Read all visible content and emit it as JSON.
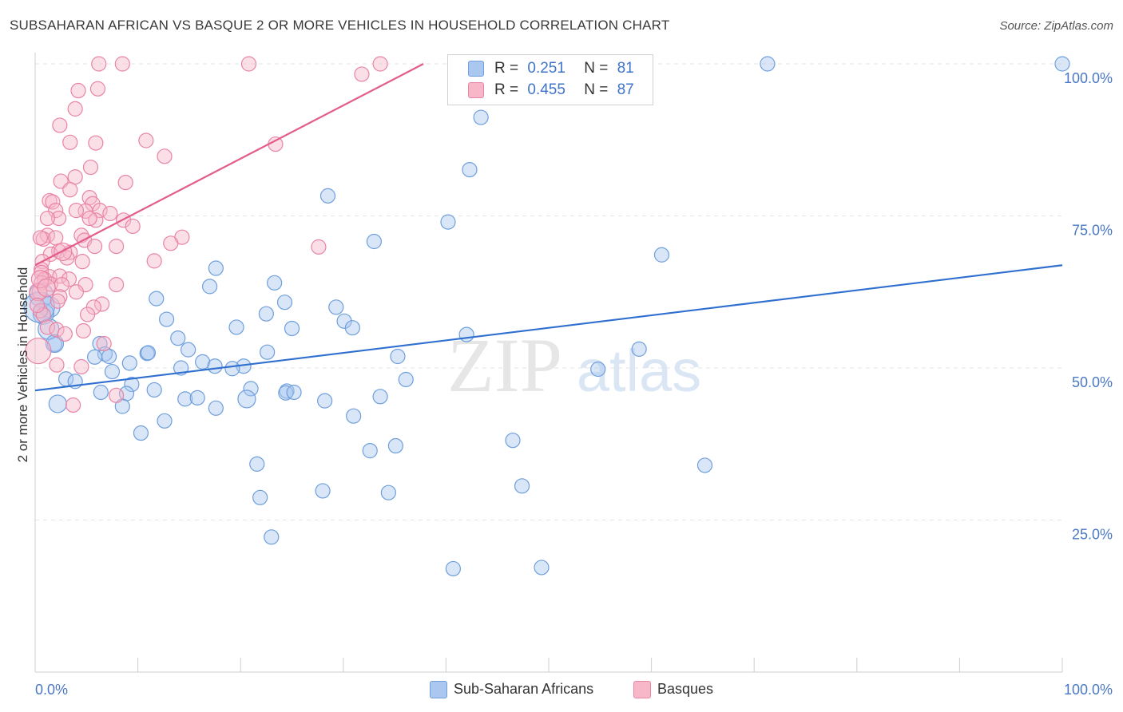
{
  "title": "SUBSAHARAN AFRICAN VS BASQUE 2 OR MORE VEHICLES IN HOUSEHOLD CORRELATION CHART",
  "source": "Source: ZipAtlas.com",
  "watermark": {
    "zip": "ZIP",
    "atlas": "atlas"
  },
  "legend_top": {
    "rows": [
      {
        "r_label": "R =",
        "r_value": "0.251",
        "n_label": "N =",
        "n_value": "81",
        "color": "#a9c7ef",
        "stroke": "#6f9fdc"
      },
      {
        "r_label": "R =",
        "r_value": "0.455",
        "n_label": "N =",
        "n_value": "87",
        "color": "#f7b7c9",
        "stroke": "#e884a6"
      }
    ]
  },
  "legend_bottom": [
    {
      "label": "Sub-Saharan Africans",
      "color": "#a9c7ef",
      "stroke": "#6f9fdc"
    },
    {
      "label": "Basques",
      "color": "#f7b7c9",
      "stroke": "#e884a6"
    }
  ],
  "chart_data": {
    "type": "scatter",
    "title": "SUBSAHARAN AFRICAN VS BASQUE 2 OR MORE VEHICLES IN HOUSEHOLD CORRELATION CHART",
    "xlabel": "",
    "ylabel": "2 or more Vehicles in Household",
    "xlim": [
      0,
      100
    ],
    "ylim": [
      0,
      100
    ],
    "x_tick_labels": [
      {
        "value": 0,
        "label": "0.0%"
      },
      {
        "value": 100,
        "label": "100.0%"
      }
    ],
    "y_tick_labels": [
      {
        "value": 25,
        "label": "25.0%"
      },
      {
        "value": 50,
        "label": "50.0%"
      },
      {
        "value": 75,
        "label": "75.0%"
      },
      {
        "value": 100,
        "label": "100.0%"
      }
    ],
    "grid": true,
    "series": [
      {
        "name": "Sub-Saharan Africans",
        "color": "#a9c7ef",
        "stroke": "#6f9fdc",
        "trend": {
          "x0": 0,
          "y0": 46.3,
          "x1": 100,
          "y1": 66.9,
          "color": "#2f6fcf"
        },
        "points": [
          [
            71.3,
            100
          ],
          [
            100,
            100
          ],
          [
            43.4,
            91.2
          ],
          [
            42.3,
            82.6
          ],
          [
            28.5,
            78.3
          ],
          [
            40.2,
            74
          ],
          [
            33,
            70.8
          ],
          [
            61,
            68.6
          ],
          [
            17.6,
            66.4
          ],
          [
            17,
            63.4
          ],
          [
            23.3,
            64
          ],
          [
            11.8,
            61.4
          ],
          [
            24.3,
            60.8
          ],
          [
            29.3,
            60
          ],
          [
            22.5,
            58.9
          ],
          [
            12.8,
            58
          ],
          [
            30.1,
            57.7
          ],
          [
            19.6,
            56.7
          ],
          [
            30.9,
            56.6
          ],
          [
            25,
            56.5
          ],
          [
            42,
            55.5
          ],
          [
            13.9,
            54.9
          ],
          [
            6.3,
            54
          ],
          [
            1.9,
            53.9
          ],
          [
            14.9,
            53
          ],
          [
            58.8,
            53.1
          ],
          [
            6.8,
            52.3
          ],
          [
            10.9,
            52.4
          ],
          [
            22.6,
            52.6
          ],
          [
            11,
            52.5
          ],
          [
            5.8,
            51.8
          ],
          [
            7.2,
            51.9
          ],
          [
            35.3,
            51.9
          ],
          [
            16.3,
            51
          ],
          [
            20.3,
            50.3
          ],
          [
            9.2,
            50.8
          ],
          [
            14.2,
            50
          ],
          [
            17.5,
            50.3
          ],
          [
            19.2,
            49.9
          ],
          [
            54.8,
            49.8
          ],
          [
            7.5,
            49.4
          ],
          [
            36.1,
            48.1
          ],
          [
            3,
            48.2
          ],
          [
            3.9,
            47.8
          ],
          [
            9.4,
            47.3
          ],
          [
            11.6,
            46.4
          ],
          [
            21,
            46.6
          ],
          [
            6.4,
            46
          ],
          [
            8.9,
            45.8
          ],
          [
            24.5,
            46.2
          ],
          [
            24.4,
            45.9
          ],
          [
            25.2,
            46
          ],
          [
            33.6,
            45.3
          ],
          [
            14.6,
            44.9
          ],
          [
            15.8,
            45.1
          ],
          [
            20.6,
            44.9
          ],
          [
            28.2,
            44.6
          ],
          [
            17.6,
            43.4
          ],
          [
            2.2,
            44.1
          ],
          [
            8.5,
            43.7
          ],
          [
            31,
            42.1
          ],
          [
            12.6,
            41.3
          ],
          [
            10.3,
            39.3
          ],
          [
            46.5,
            38.1
          ],
          [
            35.1,
            37.2
          ],
          [
            32.6,
            36.4
          ],
          [
            21.6,
            34.2
          ],
          [
            65.2,
            34
          ],
          [
            47.4,
            30.6
          ],
          [
            28,
            29.8
          ],
          [
            34.4,
            29.5
          ],
          [
            21.9,
            28.7
          ],
          [
            23,
            22.2
          ],
          [
            40.7,
            17
          ],
          [
            49.3,
            17.2
          ],
          [
            1.4,
            60
          ],
          [
            0.6,
            62
          ],
          [
            0.8,
            58.9
          ],
          [
            1.3,
            56.4
          ],
          [
            1.9,
            54
          ],
          [
            0.4,
            60
          ]
        ],
        "sizes": [
          9,
          9,
          9,
          9,
          9,
          9,
          9,
          9,
          9,
          9,
          9,
          9,
          9,
          9,
          9,
          9,
          9,
          9,
          9,
          9,
          9,
          9,
          9,
          9,
          9,
          9,
          9,
          9,
          9,
          9,
          9,
          9,
          9,
          9,
          9,
          9,
          9,
          9,
          9,
          9,
          9,
          9,
          9,
          9,
          9,
          9,
          9,
          9,
          9,
          9,
          9,
          9,
          9,
          9,
          9,
          11,
          9,
          9,
          11,
          9,
          9,
          9,
          9,
          9,
          9,
          9,
          9,
          9,
          9,
          9,
          9,
          9,
          9,
          9,
          9,
          13,
          15,
          13,
          13,
          11,
          19
        ]
      },
      {
        "name": "Basques",
        "color": "#f7b7c9",
        "stroke": "#e884a6",
        "trend": {
          "x0": 0,
          "y0": 66.9,
          "x1": 37.8,
          "y1": 100,
          "color": "#e25d8b"
        },
        "points": [
          [
            6.2,
            100
          ],
          [
            8.5,
            100
          ],
          [
            20.8,
            100
          ],
          [
            33.6,
            100
          ],
          [
            31.8,
            98.3
          ],
          [
            4.2,
            95.6
          ],
          [
            6.1,
            95.9
          ],
          [
            3.9,
            92.6
          ],
          [
            2.4,
            89.9
          ],
          [
            10.8,
            87.4
          ],
          [
            3.4,
            87.1
          ],
          [
            5.9,
            87
          ],
          [
            23.4,
            86.8
          ],
          [
            12.6,
            84.8
          ],
          [
            5.4,
            83
          ],
          [
            3.9,
            81.4
          ],
          [
            2.5,
            80.7
          ],
          [
            8.8,
            80.5
          ],
          [
            3.4,
            79.3
          ],
          [
            5.3,
            78
          ],
          [
            1.4,
            77.5
          ],
          [
            1.7,
            77.3
          ],
          [
            5.6,
            77
          ],
          [
            6.3,
            75.9
          ],
          [
            2,
            75.9
          ],
          [
            4.9,
            75.8
          ],
          [
            2.3,
            74.6
          ],
          [
            1.2,
            74.6
          ],
          [
            5.9,
            74.3
          ],
          [
            8.6,
            74.3
          ],
          [
            9.5,
            73.3
          ],
          [
            5.3,
            74.6
          ],
          [
            4.5,
            71.8
          ],
          [
            1.2,
            71.8
          ],
          [
            0.8,
            71.2
          ],
          [
            0.5,
            71.4
          ],
          [
            2,
            71.4
          ],
          [
            14.3,
            71.5
          ],
          [
            4.8,
            71
          ],
          [
            13.2,
            70.5
          ],
          [
            7.9,
            70
          ],
          [
            2.3,
            69.2
          ],
          [
            5.8,
            70
          ],
          [
            27.6,
            69.9
          ],
          [
            3.4,
            69
          ],
          [
            1.5,
            68.7
          ],
          [
            3.1,
            68.1
          ],
          [
            0.7,
            67.5
          ],
          [
            11.6,
            67.6
          ],
          [
            4.6,
            67.5
          ],
          [
            0.6,
            66.2
          ],
          [
            0.6,
            65.7
          ],
          [
            1.4,
            65
          ],
          [
            2.4,
            65.1
          ],
          [
            0.9,
            64.6
          ],
          [
            3.3,
            64.6
          ],
          [
            1.5,
            63.8
          ],
          [
            2.6,
            63.7
          ],
          [
            0.6,
            64
          ],
          [
            4.9,
            63.7
          ],
          [
            7.9,
            63.7
          ],
          [
            0.4,
            62.5
          ],
          [
            4,
            62.5
          ],
          [
            2.4,
            61.7
          ],
          [
            2.2,
            61
          ],
          [
            6.5,
            60.5
          ],
          [
            5.7,
            60
          ],
          [
            0.5,
            59.4
          ],
          [
            5.1,
            58.8
          ],
          [
            0.8,
            58.7
          ],
          [
            1.2,
            56.7
          ],
          [
            2.1,
            56.3
          ],
          [
            4.7,
            56.1
          ],
          [
            2.9,
            55.6
          ],
          [
            6.7,
            54
          ],
          [
            2.1,
            50.5
          ],
          [
            4.5,
            50.2
          ],
          [
            7.9,
            45.5
          ],
          [
            3.7,
            43.9
          ],
          [
            0.3,
            52.8
          ],
          [
            0.3,
            62.5
          ],
          [
            0.5,
            64.6
          ],
          [
            2.7,
            69.1
          ],
          [
            4,
            75.9
          ],
          [
            7.3,
            75.4
          ],
          [
            1.1,
            63.2
          ],
          [
            0.2,
            60.3
          ]
        ],
        "sizes": [
          9,
          9,
          9,
          9,
          9,
          9,
          9,
          9,
          9,
          9,
          9,
          9,
          9,
          9,
          9,
          9,
          9,
          9,
          9,
          9,
          9,
          9,
          9,
          9,
          9,
          9,
          9,
          9,
          9,
          9,
          9,
          9,
          9,
          9,
          9,
          9,
          9,
          9,
          9,
          9,
          9,
          9,
          9,
          9,
          9,
          9,
          9,
          9,
          9,
          9,
          9,
          9,
          9,
          9,
          9,
          9,
          9,
          9,
          9,
          9,
          9,
          9,
          9,
          9,
          9,
          9,
          9,
          9,
          9,
          9,
          9,
          9,
          9,
          9,
          9,
          9,
          9,
          9,
          9,
          16,
          11,
          11,
          11,
          9,
          9,
          11,
          9
        ]
      }
    ]
  }
}
